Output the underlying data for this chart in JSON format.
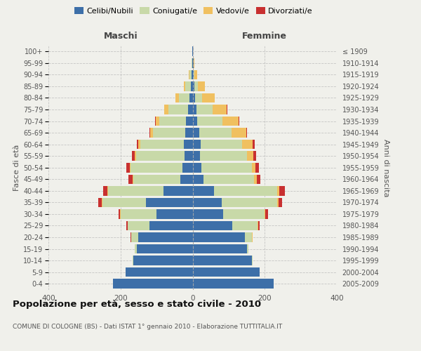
{
  "age_groups": [
    "0-4",
    "5-9",
    "10-14",
    "15-19",
    "20-24",
    "25-29",
    "30-34",
    "35-39",
    "40-44",
    "45-49",
    "50-54",
    "55-59",
    "60-64",
    "65-69",
    "70-74",
    "75-79",
    "80-84",
    "85-89",
    "90-94",
    "95-99",
    "100+"
  ],
  "birth_years": [
    "2005-2009",
    "2000-2004",
    "1995-1999",
    "1990-1994",
    "1985-1989",
    "1980-1984",
    "1975-1979",
    "1970-1974",
    "1965-1969",
    "1960-1964",
    "1955-1959",
    "1950-1954",
    "1945-1949",
    "1940-1944",
    "1935-1939",
    "1930-1934",
    "1925-1929",
    "1920-1924",
    "1915-1919",
    "1910-1914",
    "≤ 1909"
  ],
  "males": {
    "celibi": [
      220,
      185,
      165,
      155,
      150,
      120,
      100,
      130,
      80,
      35,
      28,
      22,
      25,
      20,
      18,
      12,
      8,
      5,
      3,
      1,
      1
    ],
    "coniugati": [
      0,
      0,
      2,
      5,
      20,
      60,
      100,
      120,
      155,
      130,
      145,
      135,
      120,
      90,
      75,
      55,
      30,
      15,
      5,
      1,
      0
    ],
    "vedovi": [
      0,
      0,
      0,
      0,
      1,
      1,
      1,
      2,
      2,
      2,
      2,
      3,
      5,
      8,
      10,
      12,
      10,
      5,
      2,
      0,
      0
    ],
    "divorziati": [
      0,
      0,
      0,
      0,
      1,
      3,
      5,
      10,
      12,
      12,
      8,
      8,
      5,
      2,
      2,
      0,
      0,
      0,
      0,
      0,
      0
    ]
  },
  "females": {
    "nubili": [
      225,
      185,
      165,
      150,
      145,
      110,
      85,
      80,
      60,
      30,
      25,
      20,
      22,
      18,
      12,
      10,
      6,
      5,
      3,
      2,
      1
    ],
    "coniugate": [
      0,
      0,
      2,
      5,
      20,
      70,
      115,
      155,
      175,
      140,
      140,
      130,
      115,
      90,
      70,
      45,
      20,
      10,
      2,
      0,
      0
    ],
    "vedove": [
      0,
      0,
      0,
      0,
      1,
      2,
      2,
      3,
      5,
      8,
      10,
      18,
      30,
      40,
      45,
      40,
      35,
      20,
      8,
      2,
      0
    ],
    "divorziate": [
      0,
      0,
      0,
      0,
      1,
      3,
      8,
      10,
      15,
      10,
      8,
      8,
      5,
      2,
      2,
      2,
      0,
      0,
      0,
      0,
      0
    ]
  },
  "color_celibi": "#3d6fa8",
  "color_coniugati": "#c8d9a8",
  "color_vedovi": "#f0c060",
  "color_divorziati": "#c83030",
  "title": "Popolazione per età, sesso e stato civile - 2010",
  "subtitle": "COMUNE DI COLOGNE (BS) - Dati ISTAT 1° gennaio 2010 - Elaborazione TUTTITALIA.IT",
  "xlabel_maschi": "Maschi",
  "xlabel_femmine": "Femmine",
  "ylabel_left": "Fasce di età",
  "ylabel_right": "Anni di nascita",
  "xlim": 400,
  "background_color": "#f0f0eb"
}
